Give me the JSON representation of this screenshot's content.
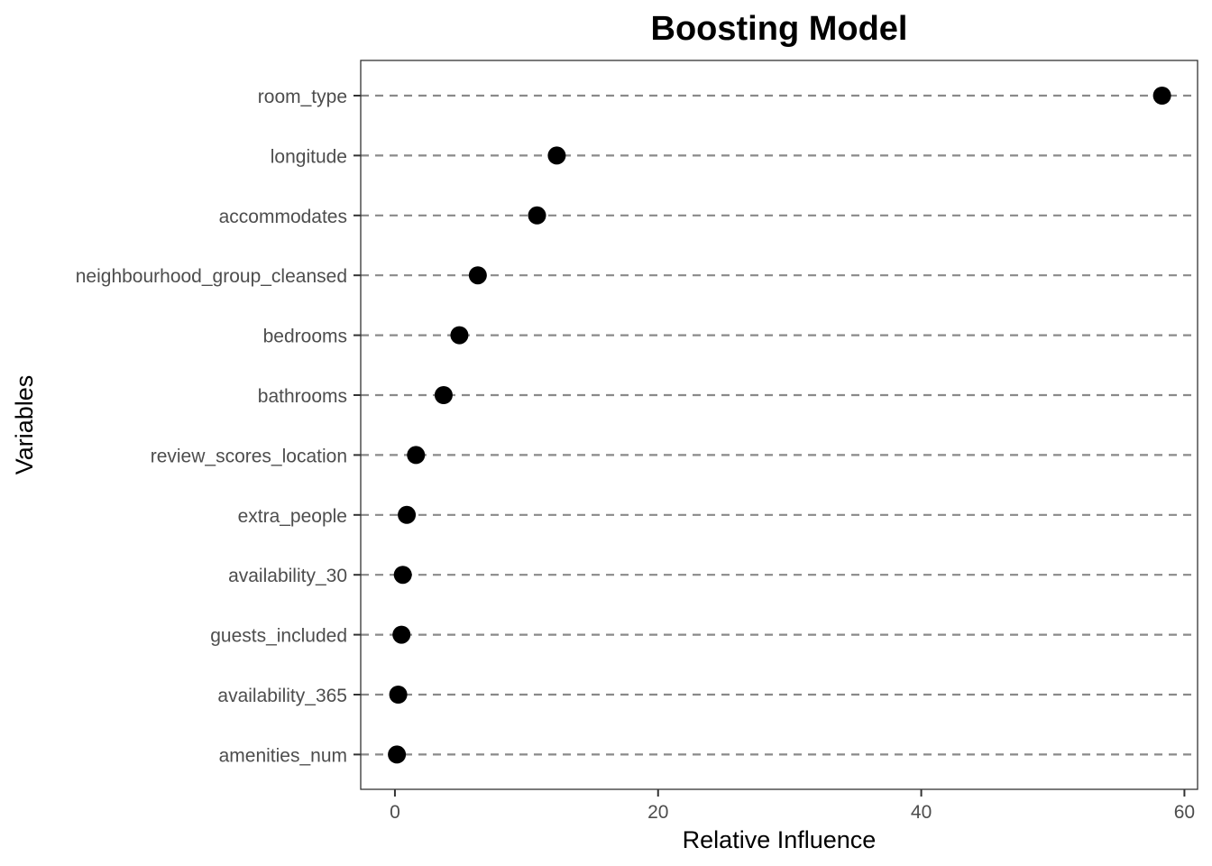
{
  "chart_data": {
    "type": "scatter",
    "title": "Boosting Model",
    "xlabel": "Relative Influence",
    "ylabel": "Variables",
    "xlim": [
      -2.6,
      61.0
    ],
    "xticks": [
      0,
      20,
      40,
      60
    ],
    "xtick_labels": [
      "0",
      "20",
      "40",
      "60"
    ],
    "grid": false,
    "legend": "none",
    "reference_lines": "dashed horizontal line per variable",
    "categories": [
      "room_type",
      "longitude",
      "accommodates",
      "neighbourhood_group_cleansed",
      "bedrooms",
      "bathrooms",
      "review_scores_location",
      "extra_people",
      "availability_30",
      "guests_included",
      "availability_365",
      "amenities_num"
    ],
    "values": [
      58.3,
      12.3,
      10.8,
      6.3,
      4.9,
      3.7,
      1.6,
      0.9,
      0.6,
      0.5,
      0.25,
      0.15
    ],
    "colors": {
      "point": "#000000",
      "ref_line": "#8a8a8a",
      "tick_label": "#4d4d4d",
      "panel_border": "#333333"
    }
  }
}
